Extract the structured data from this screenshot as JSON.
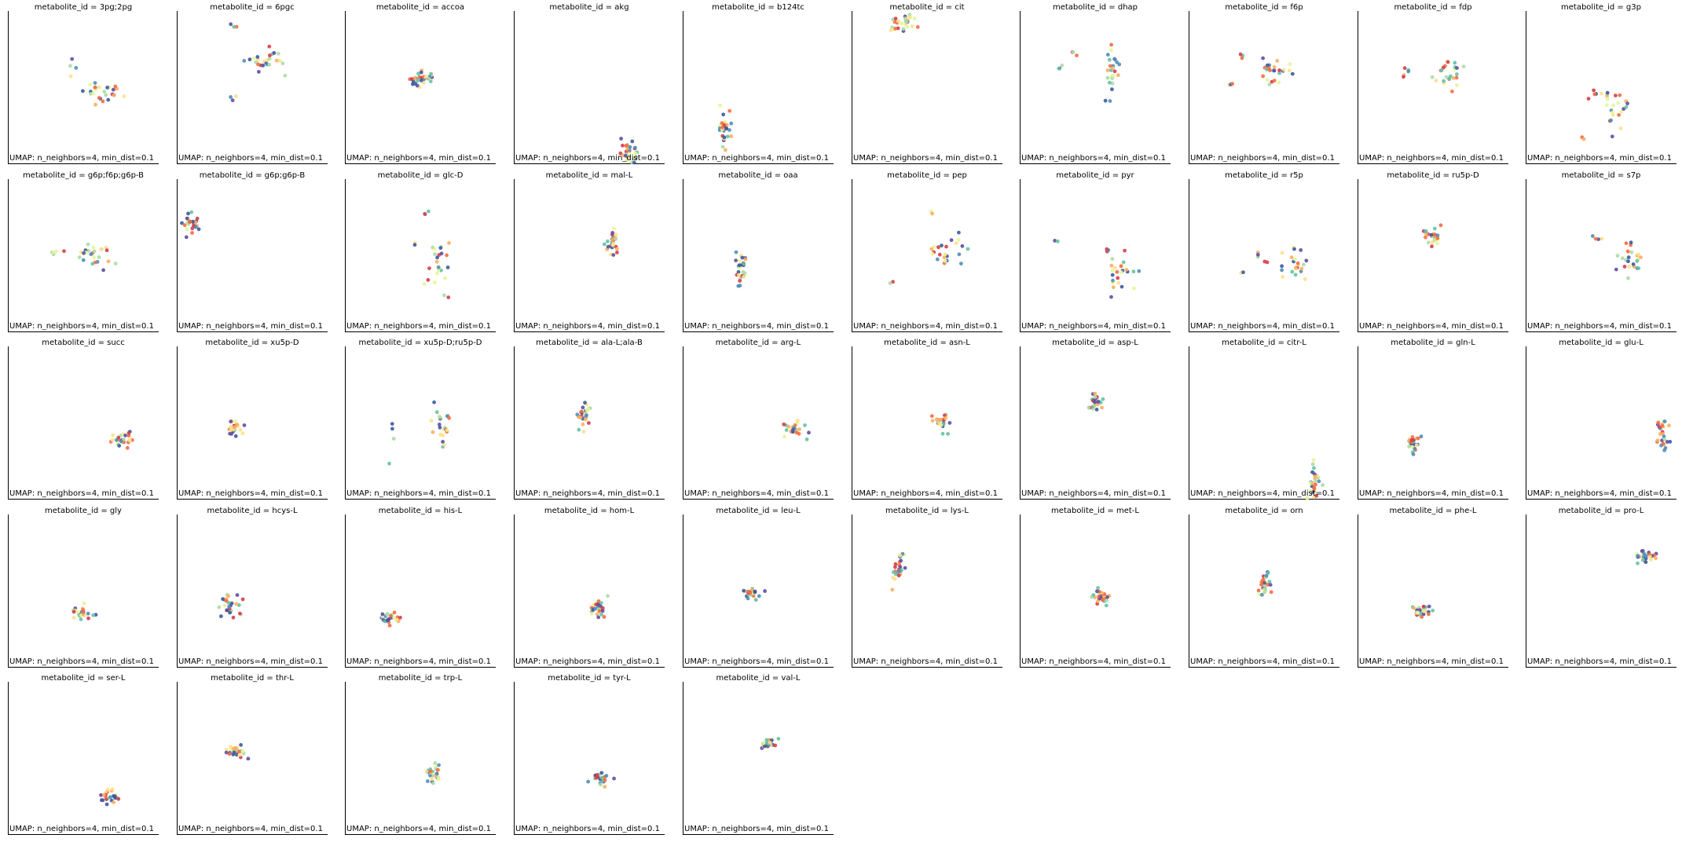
{
  "figure": {
    "background": "#ffffff",
    "axis_color": "#000000"
  },
  "palette": [
    "#3b5b9e",
    "#4e8fb8",
    "#66c2a5",
    "#abdda4",
    "#e6f598",
    "#fee08b",
    "#fdae61",
    "#f46d43",
    "#d53e4f",
    "#5e4fa2"
  ],
  "chart_data": [
    {
      "type": "scatter",
      "title": "metabolite_id = 3pg;2pg",
      "xlabel": "UMAP: n_neighbors=4, min_dist=0.1",
      "clusters": [
        {
          "x": 0.62,
          "y": 0.47,
          "sx": 0.07,
          "sy": 0.03,
          "n": 22
        },
        {
          "x": 0.56,
          "y": 0.52,
          "sx": 0.015,
          "sy": 0.02,
          "n": 5
        },
        {
          "x": 0.42,
          "y": 0.63,
          "sx": 0.015,
          "sy": 0.03,
          "n": 4
        }
      ]
    },
    {
      "type": "scatter",
      "title": "metabolite_id = 6pgc",
      "xlabel": "UMAP: n_neighbors=4, min_dist=0.1",
      "clusters": [
        {
          "x": 0.58,
          "y": 0.66,
          "sx": 0.08,
          "sy": 0.03,
          "n": 22
        },
        {
          "x": 0.62,
          "y": 0.72,
          "sx": 0.015,
          "sy": 0.02,
          "n": 4
        },
        {
          "x": 0.37,
          "y": 0.9,
          "sx": 0.01,
          "sy": 0.01,
          "n": 3
        },
        {
          "x": 0.37,
          "y": 0.43,
          "sx": 0.01,
          "sy": 0.01,
          "n": 3
        }
      ]
    },
    {
      "type": "scatter",
      "title": "metabolite_id = accoa",
      "xlabel": "UMAP: n_neighbors=4, min_dist=0.1",
      "clusters": [
        {
          "x": 0.52,
          "y": 0.56,
          "sx": 0.04,
          "sy": 0.02,
          "n": 28
        },
        {
          "x": 0.45,
          "y": 0.53,
          "sx": 0.015,
          "sy": 0.01,
          "n": 4
        }
      ]
    },
    {
      "type": "scatter",
      "title": "metabolite_id = akg",
      "xlabel": "UMAP: n_neighbors=4, min_dist=0.1",
      "clusters": [
        {
          "x": 0.77,
          "y": 0.08,
          "sx": 0.035,
          "sy": 0.04,
          "n": 28
        }
      ]
    },
    {
      "type": "scatter",
      "title": "metabolite_id = b124tc",
      "xlabel": "UMAP: n_neighbors=4, min_dist=0.1",
      "clusters": [
        {
          "x": 0.27,
          "y": 0.24,
          "sx": 0.025,
          "sy": 0.05,
          "n": 28
        }
      ]
    },
    {
      "type": "scatter",
      "title": "metabolite_id = cit",
      "xlabel": "UMAP: n_neighbors=4, min_dist=0.1",
      "clusters": [
        {
          "x": 0.36,
          "y": 0.93,
          "sx": 0.04,
          "sy": 0.025,
          "n": 22
        },
        {
          "x": 0.27,
          "y": 0.89,
          "sx": 0.012,
          "sy": 0.012,
          "n": 5
        }
      ]
    },
    {
      "type": "scatter",
      "title": "metabolite_id = dhap",
      "xlabel": "UMAP: n_neighbors=4, min_dist=0.1",
      "clusters": [
        {
          "x": 0.61,
          "y": 0.63,
          "sx": 0.03,
          "sy": 0.09,
          "n": 24
        },
        {
          "x": 0.35,
          "y": 0.72,
          "sx": 0.01,
          "sy": 0.01,
          "n": 3
        },
        {
          "x": 0.26,
          "y": 0.63,
          "sx": 0.01,
          "sy": 0.01,
          "n": 3
        }
      ]
    },
    {
      "type": "scatter",
      "title": "metabolite_id = f6p",
      "xlabel": "UMAP: n_neighbors=4, min_dist=0.1",
      "clusters": [
        {
          "x": 0.56,
          "y": 0.6,
          "sx": 0.06,
          "sy": 0.05,
          "n": 24
        },
        {
          "x": 0.35,
          "y": 0.7,
          "sx": 0.01,
          "sy": 0.01,
          "n": 3
        },
        {
          "x": 0.27,
          "y": 0.53,
          "sx": 0.01,
          "sy": 0.01,
          "n": 3
        }
      ]
    },
    {
      "type": "scatter",
      "title": "metabolite_id = fdp",
      "xlabel": "UMAP: n_neighbors=4, min_dist=0.1",
      "clusters": [
        {
          "x": 0.6,
          "y": 0.56,
          "sx": 0.06,
          "sy": 0.06,
          "n": 24
        },
        {
          "x": 0.32,
          "y": 0.62,
          "sx": 0.012,
          "sy": 0.04,
          "n": 5
        }
      ]
    },
    {
      "type": "scatter",
      "title": "metabolite_id = g3p",
      "xlabel": "UMAP: n_neighbors=4, min_dist=0.1",
      "clusters": [
        {
          "x": 0.58,
          "y": 0.38,
          "sx": 0.05,
          "sy": 0.08,
          "n": 24
        },
        {
          "x": 0.45,
          "y": 0.47,
          "sx": 0.012,
          "sy": 0.012,
          "n": 3
        },
        {
          "x": 0.37,
          "y": 0.18,
          "sx": 0.01,
          "sy": 0.01,
          "n": 2
        }
      ]
    },
    {
      "type": "scatter",
      "title": "metabolite_id = g6p;f6p;g6p-B",
      "xlabel": "UMAP: n_neighbors=4, min_dist=0.1",
      "clusters": [
        {
          "x": 0.58,
          "y": 0.5,
          "sx": 0.06,
          "sy": 0.04,
          "n": 24
        },
        {
          "x": 0.32,
          "y": 0.52,
          "sx": 0.03,
          "sy": 0.01,
          "n": 5
        }
      ]
    },
    {
      "type": "scatter",
      "title": "metabolite_id = g6p;g6p-B",
      "xlabel": "UMAP: n_neighbors=4, min_dist=0.1",
      "clusters": [
        {
          "x": 0.09,
          "y": 0.71,
          "sx": 0.03,
          "sy": 0.035,
          "n": 26
        }
      ]
    },
    {
      "type": "scatter",
      "title": "metabolite_id = glc-D",
      "xlabel": "UMAP: n_neighbors=4, min_dist=0.1",
      "clusters": [
        {
          "x": 0.6,
          "y": 0.42,
          "sx": 0.05,
          "sy": 0.09,
          "n": 24
        },
        {
          "x": 0.53,
          "y": 0.78,
          "sx": 0.01,
          "sy": 0.01,
          "n": 3
        },
        {
          "x": 0.46,
          "y": 0.58,
          "sx": 0.01,
          "sy": 0.01,
          "n": 2
        }
      ]
    },
    {
      "type": "scatter",
      "title": "metabolite_id = mal-L",
      "xlabel": "UMAP: n_neighbors=4, min_dist=0.1",
      "clusters": [
        {
          "x": 0.65,
          "y": 0.6,
          "sx": 0.02,
          "sy": 0.06,
          "n": 26
        }
      ]
    },
    {
      "type": "scatter",
      "title": "metabolite_id = oaa",
      "xlabel": "UMAP: n_neighbors=4, min_dist=0.1",
      "clusters": [
        {
          "x": 0.38,
          "y": 0.42,
          "sx": 0.02,
          "sy": 0.04,
          "n": 26
        }
      ]
    },
    {
      "type": "scatter",
      "title": "metabolite_id = pep",
      "xlabel": "UMAP: n_neighbors=4, min_dist=0.1",
      "clusters": [
        {
          "x": 0.62,
          "y": 0.52,
          "sx": 0.06,
          "sy": 0.05,
          "n": 24
        },
        {
          "x": 0.52,
          "y": 0.78,
          "sx": 0.01,
          "sy": 0.01,
          "n": 2
        },
        {
          "x": 0.25,
          "y": 0.32,
          "sx": 0.01,
          "sy": 0.012,
          "n": 2
        }
      ]
    },
    {
      "type": "scatter",
      "title": "metabolite_id = pyr",
      "xlabel": "UMAP: n_neighbors=4, min_dist=0.1",
      "clusters": [
        {
          "x": 0.68,
          "y": 0.38,
          "sx": 0.05,
          "sy": 0.06,
          "n": 24
        },
        {
          "x": 0.57,
          "y": 0.53,
          "sx": 0.01,
          "sy": 0.01,
          "n": 3
        },
        {
          "x": 0.25,
          "y": 0.6,
          "sx": 0.01,
          "sy": 0.01,
          "n": 2
        }
      ]
    },
    {
      "type": "scatter",
      "title": "metabolite_id = r5p",
      "xlabel": "UMAP: n_neighbors=4, min_dist=0.1",
      "clusters": [
        {
          "x": 0.68,
          "y": 0.44,
          "sx": 0.06,
          "sy": 0.04,
          "n": 24
        },
        {
          "x": 0.46,
          "y": 0.5,
          "sx": 0.01,
          "sy": 0.01,
          "n": 3
        },
        {
          "x": 0.34,
          "y": 0.4,
          "sx": 0.01,
          "sy": 0.01,
          "n": 2
        }
      ]
    },
    {
      "type": "scatter",
      "title": "metabolite_id = ru5p-D",
      "xlabel": "UMAP: n_neighbors=4, min_dist=0.1",
      "clusters": [
        {
          "x": 0.49,
          "y": 0.63,
          "sx": 0.035,
          "sy": 0.03,
          "n": 26
        }
      ]
    },
    {
      "type": "scatter",
      "title": "metabolite_id = s7p",
      "xlabel": "UMAP: n_neighbors=4, min_dist=0.1",
      "clusters": [
        {
          "x": 0.69,
          "y": 0.47,
          "sx": 0.05,
          "sy": 0.05,
          "n": 24
        },
        {
          "x": 0.47,
          "y": 0.62,
          "sx": 0.02,
          "sy": 0.01,
          "n": 4
        }
      ]
    },
    {
      "type": "scatter",
      "title": "metabolite_id = succ",
      "xlabel": "UMAP: n_neighbors=4, min_dist=0.1",
      "clusters": [
        {
          "x": 0.76,
          "y": 0.39,
          "sx": 0.04,
          "sy": 0.025,
          "n": 26
        }
      ]
    },
    {
      "type": "scatter",
      "title": "metabolite_id = xu5p-D",
      "xlabel": "UMAP: n_neighbors=4, min_dist=0.1",
      "clusters": [
        {
          "x": 0.37,
          "y": 0.45,
          "sx": 0.03,
          "sy": 0.03,
          "n": 26
        }
      ]
    },
    {
      "type": "scatter",
      "title": "metabolite_id = xu5p-D;ru5p-D",
      "xlabel": "UMAP: n_neighbors=4, min_dist=0.1",
      "clusters": [
        {
          "x": 0.62,
          "y": 0.47,
          "sx": 0.05,
          "sy": 0.06,
          "n": 22
        },
        {
          "x": 0.3,
          "y": 0.4,
          "sx": 0.012,
          "sy": 0.06,
          "n": 4
        }
      ]
    },
    {
      "type": "scatter",
      "title": "metabolite_id = ala-L;ala-B",
      "xlabel": "UMAP: n_neighbors=4, min_dist=0.1",
      "clusters": [
        {
          "x": 0.46,
          "y": 0.55,
          "sx": 0.02,
          "sy": 0.04,
          "n": 26
        }
      ]
    },
    {
      "type": "scatter",
      "title": "metabolite_id = arg-L",
      "xlabel": "UMAP: n_neighbors=4, min_dist=0.1",
      "clusters": [
        {
          "x": 0.73,
          "y": 0.46,
          "sx": 0.04,
          "sy": 0.03,
          "n": 26
        }
      ]
    },
    {
      "type": "scatter",
      "title": "metabolite_id = asn-L",
      "xlabel": "UMAP: n_neighbors=4, min_dist=0.1",
      "clusters": [
        {
          "x": 0.59,
          "y": 0.51,
          "sx": 0.025,
          "sy": 0.03,
          "n": 26
        }
      ]
    },
    {
      "type": "scatter",
      "title": "metabolite_id = asp-L",
      "xlabel": "UMAP: n_neighbors=4, min_dist=0.1",
      "clusters": [
        {
          "x": 0.49,
          "y": 0.64,
          "sx": 0.02,
          "sy": 0.035,
          "n": 26
        }
      ]
    },
    {
      "type": "scatter",
      "title": "metabolite_id = citr-L",
      "xlabel": "UMAP: n_neighbors=4, min_dist=0.1",
      "clusters": [
        {
          "x": 0.83,
          "y": 0.1,
          "sx": 0.02,
          "sy": 0.06,
          "n": 26
        }
      ]
    },
    {
      "type": "scatter",
      "title": "metabolite_id = gln-L",
      "xlabel": "UMAP: n_neighbors=4, min_dist=0.1",
      "clusters": [
        {
          "x": 0.36,
          "y": 0.37,
          "sx": 0.02,
          "sy": 0.035,
          "n": 26
        }
      ]
    },
    {
      "type": "scatter",
      "title": "metabolite_id = glu-L",
      "xlabel": "UMAP: n_neighbors=4, min_dist=0.1",
      "clusters": [
        {
          "x": 0.9,
          "y": 0.42,
          "sx": 0.025,
          "sy": 0.05,
          "n": 26
        }
      ]
    },
    {
      "type": "scatter",
      "title": "metabolite_id = gly",
      "xlabel": "UMAP: n_neighbors=4, min_dist=0.1",
      "clusters": [
        {
          "x": 0.5,
          "y": 0.36,
          "sx": 0.04,
          "sy": 0.02,
          "n": 26
        }
      ]
    },
    {
      "type": "scatter",
      "title": "metabolite_id = hcys-L",
      "xlabel": "UMAP: n_neighbors=4, min_dist=0.1",
      "clusters": [
        {
          "x": 0.35,
          "y": 0.4,
          "sx": 0.04,
          "sy": 0.035,
          "n": 26
        }
      ]
    },
    {
      "type": "scatter",
      "title": "metabolite_id = his-L",
      "xlabel": "UMAP: n_neighbors=4, min_dist=0.1",
      "clusters": [
        {
          "x": 0.3,
          "y": 0.32,
          "sx": 0.04,
          "sy": 0.02,
          "n": 26
        }
      ]
    },
    {
      "type": "scatter",
      "title": "metabolite_id = hom-L",
      "xlabel": "UMAP: n_neighbors=4, min_dist=0.1",
      "clusters": [
        {
          "x": 0.55,
          "y": 0.38,
          "sx": 0.025,
          "sy": 0.03,
          "n": 26
        }
      ]
    },
    {
      "type": "scatter",
      "title": "metabolite_id = leu-L",
      "xlabel": "UMAP: n_neighbors=4, min_dist=0.1",
      "clusters": [
        {
          "x": 0.46,
          "y": 0.49,
          "sx": 0.035,
          "sy": 0.025,
          "n": 26
        }
      ]
    },
    {
      "type": "scatter",
      "title": "metabolite_id = lys-L",
      "xlabel": "UMAP: n_neighbors=4, min_dist=0.1",
      "clusters": [
        {
          "x": 0.31,
          "y": 0.67,
          "sx": 0.02,
          "sy": 0.05,
          "n": 26
        }
      ]
    },
    {
      "type": "scatter",
      "title": "metabolite_id = met-L",
      "xlabel": "UMAP: n_neighbors=4, min_dist=0.1",
      "clusters": [
        {
          "x": 0.53,
          "y": 0.46,
          "sx": 0.03,
          "sy": 0.025,
          "n": 26
        }
      ]
    },
    {
      "type": "scatter",
      "title": "metabolite_id = orn",
      "xlabel": "UMAP: n_neighbors=4, min_dist=0.1",
      "clusters": [
        {
          "x": 0.5,
          "y": 0.54,
          "sx": 0.02,
          "sy": 0.035,
          "n": 26
        }
      ]
    },
    {
      "type": "scatter",
      "title": "metabolite_id = phe-L",
      "xlabel": "UMAP: n_neighbors=4, min_dist=0.1",
      "clusters": [
        {
          "x": 0.42,
          "y": 0.37,
          "sx": 0.035,
          "sy": 0.025,
          "n": 26
        }
      ]
    },
    {
      "type": "scatter",
      "title": "metabolite_id = pro-L",
      "xlabel": "UMAP: n_neighbors=4, min_dist=0.1",
      "clusters": [
        {
          "x": 0.8,
          "y": 0.73,
          "sx": 0.04,
          "sy": 0.02,
          "n": 26
        }
      ]
    },
    {
      "type": "scatter",
      "title": "metabolite_id = ser-L",
      "xlabel": "UMAP: n_neighbors=4, min_dist=0.1",
      "clusters": [
        {
          "x": 0.67,
          "y": 0.26,
          "sx": 0.035,
          "sy": 0.025,
          "n": 26
        }
      ]
    },
    {
      "type": "scatter",
      "title": "metabolite_id = thr-L",
      "xlabel": "UMAP: n_neighbors=4, min_dist=0.1",
      "clusters": [
        {
          "x": 0.39,
          "y": 0.55,
          "sx": 0.035,
          "sy": 0.025,
          "n": 26
        }
      ]
    },
    {
      "type": "scatter",
      "title": "metabolite_id = trp-L",
      "xlabel": "UMAP: n_neighbors=4, min_dist=0.1",
      "clusters": [
        {
          "x": 0.58,
          "y": 0.4,
          "sx": 0.03,
          "sy": 0.025,
          "n": 26
        }
      ]
    },
    {
      "type": "scatter",
      "title": "metabolite_id = tyr-L",
      "xlabel": "UMAP: n_neighbors=4, min_dist=0.1",
      "clusters": [
        {
          "x": 0.57,
          "y": 0.37,
          "sx": 0.035,
          "sy": 0.02,
          "n": 26
        }
      ]
    },
    {
      "type": "scatter",
      "title": "metabolite_id = val-L",
      "xlabel": "UMAP: n_neighbors=4, min_dist=0.1",
      "clusters": [
        {
          "x": 0.56,
          "y": 0.6,
          "sx": 0.035,
          "sy": 0.02,
          "n": 26
        }
      ]
    }
  ]
}
